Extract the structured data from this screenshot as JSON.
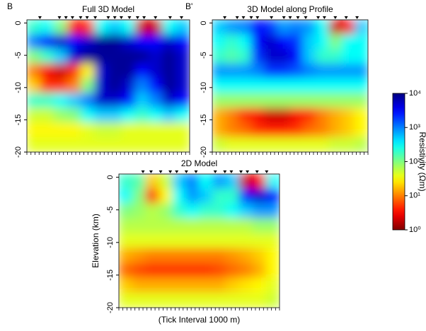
{
  "chart_data": [
    {
      "type": "heatmap",
      "title": "Full 3D Model",
      "left_label": "B",
      "right_label": "B'",
      "ylim": [
        -20,
        0.5
      ],
      "yticks": [
        0,
        -5,
        -10,
        -15,
        -20
      ],
      "values": [
        [
          200,
          300,
          100,
          3,
          5,
          300,
          500,
          300,
          2,
          2,
          300,
          500
        ],
        [
          1000,
          3000,
          5000,
          3000,
          5000,
          8000,
          8000,
          5000,
          3000,
          3000,
          5000,
          3000
        ],
        [
          100,
          200,
          500,
          5000,
          8000,
          8000,
          8000,
          8000,
          8000,
          5000,
          8000,
          5000
        ],
        [
          10,
          3,
          2,
          5,
          30,
          5000,
          8000,
          8000,
          3000,
          5000,
          8000,
          5000
        ],
        [
          20,
          5,
          5,
          10,
          100,
          5000,
          8000,
          5000,
          1000,
          3000,
          8000,
          5000
        ],
        [
          200,
          200,
          300,
          500,
          1000,
          5000,
          5000,
          3000,
          500,
          1000,
          5000,
          3000
        ],
        [
          50,
          50,
          80,
          100,
          300,
          500,
          500,
          300,
          200,
          300,
          500,
          300
        ],
        [
          30,
          30,
          30,
          30,
          40,
          50,
          50,
          40,
          40,
          40,
          40,
          40
        ],
        [
          40,
          40,
          40,
          40,
          40,
          40,
          40,
          40,
          40,
          40,
          40,
          40
        ]
      ]
    },
    {
      "type": "heatmap",
      "title": "3D Model along Profile",
      "ylim": [
        -20,
        0.5
      ],
      "yticks": [
        0,
        -5,
        -10,
        -15,
        -20
      ],
      "values": [
        [
          500,
          800,
          1000,
          3000,
          2000,
          800,
          1000,
          800,
          300,
          2,
          3,
          500
        ],
        [
          300,
          200,
          300,
          3000,
          5000,
          3000,
          2000,
          500,
          300,
          100,
          300,
          300
        ],
        [
          200,
          150,
          200,
          2000,
          5000,
          5000,
          3000,
          500,
          200,
          200,
          300,
          300
        ],
        [
          800,
          800,
          800,
          1000,
          2000,
          2000,
          1500,
          1000,
          800,
          800,
          800,
          800
        ],
        [
          300,
          300,
          300,
          300,
          300,
          300,
          300,
          300,
          300,
          300,
          300,
          300
        ],
        [
          80,
          80,
          80,
          80,
          80,
          80,
          80,
          80,
          80,
          80,
          80,
          80
        ],
        [
          15,
          10,
          5,
          3,
          2,
          2,
          3,
          5,
          10,
          15,
          20,
          30
        ],
        [
          15,
          10,
          8,
          5,
          4,
          4,
          5,
          8,
          10,
          15,
          20,
          30
        ],
        [
          50,
          40,
          40,
          40,
          40,
          40,
          40,
          40,
          40,
          50,
          50,
          60
        ]
      ]
    },
    {
      "type": "heatmap",
      "title": "2D Model",
      "ylabel": "Elevation (km)",
      "xlabel": "(Tick Interval 1000 m)",
      "ylim": [
        -20,
        0.5
      ],
      "yticks": [
        0,
        -5,
        -10,
        -15,
        -20
      ],
      "values": [
        [
          200,
          150,
          20,
          50,
          500,
          1000,
          300,
          800,
          500,
          2,
          3,
          300
        ],
        [
          300,
          100,
          5,
          30,
          300,
          800,
          500,
          200,
          200,
          3000,
          5000,
          3000
        ],
        [
          100,
          80,
          60,
          80,
          200,
          300,
          200,
          200,
          300,
          500,
          800,
          800
        ],
        [
          60,
          60,
          60,
          60,
          60,
          60,
          60,
          60,
          60,
          60,
          80,
          80
        ],
        [
          40,
          40,
          40,
          40,
          40,
          40,
          40,
          40,
          40,
          40,
          40,
          40
        ],
        [
          15,
          12,
          10,
          10,
          10,
          10,
          10,
          10,
          12,
          15,
          20,
          30
        ],
        [
          8,
          6,
          5,
          5,
          5,
          5,
          5,
          6,
          8,
          10,
          15,
          30
        ],
        [
          20,
          15,
          15,
          15,
          15,
          15,
          15,
          15,
          20,
          25,
          30,
          40
        ],
        [
          40,
          40,
          40,
          40,
          40,
          40,
          40,
          40,
          40,
          40,
          40,
          50
        ]
      ]
    }
  ],
  "colorbar": {
    "label": "Resistivity (Ωm)",
    "log": true,
    "clim": [
      1,
      10000
    ],
    "ticks": [
      {
        "value": 1,
        "label": "10⁰"
      },
      {
        "value": 10,
        "label": "10¹"
      },
      {
        "value": 100,
        "label": "10²"
      },
      {
        "value": 1000,
        "label": "10³"
      },
      {
        "value": 10000,
        "label": "10⁴"
      }
    ]
  }
}
